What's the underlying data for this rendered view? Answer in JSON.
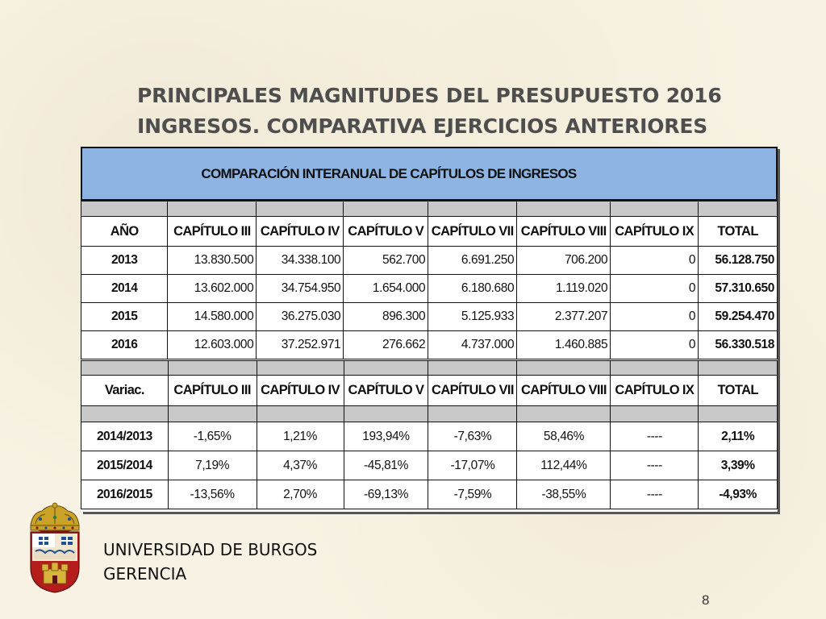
{
  "title": {
    "line1": "PRINCIPALES MAGNITUDES DEL PRESUPUESTO 2016",
    "line2": "INGRESOS. COMPARATIVA EJERCICIOS ANTERIORES"
  },
  "table": {
    "heading": "COMPARACIÓN INTERANUAL DE CAPÍTULOS DE INGRESOS",
    "amounts": {
      "columns": [
        "AÑO",
        "CAPÍTULO III",
        "CAPÍTULO IV",
        "CAPÍTULO V",
        "CAPÍTULO VII",
        "CAPÍTULO VIII",
        "CAPÍTULO IX",
        "TOTAL"
      ],
      "rows": [
        [
          "2013",
          "13.830.500",
          "34.338.100",
          "562.700",
          "6.691.250",
          "706.200",
          "0",
          "56.128.750"
        ],
        [
          "2014",
          "13.602.000",
          "34.754.950",
          "1.654.000",
          "6.180.680",
          "1.119.020",
          "0",
          "57.310.650"
        ],
        [
          "2015",
          "14.580.000",
          "36.275.030",
          "896.300",
          "5.125.933",
          "2.377.207",
          "0",
          "59.254.470"
        ],
        [
          "2016",
          "12.603.000",
          "37.252.971",
          "276.662",
          "4.737.000",
          "1.460.885",
          "0",
          "56.330.518"
        ]
      ]
    },
    "variations": {
      "columns": [
        "Variac.",
        "CAPÍTULO III",
        "CAPÍTULO IV",
        "CAPÍTULO V",
        "CAPÍTULO VII",
        "CAPÍTULO VIII",
        "CAPÍTULO IX",
        "TOTAL"
      ],
      "rows": [
        [
          "2014/2013",
          "-1,65%",
          "1,21%",
          "193,94%",
          "-7,63%",
          "58,46%",
          "----",
          "2,11%"
        ],
        [
          "2015/2014",
          "7,19%",
          "4,37%",
          "-45,81%",
          "-17,07%",
          "112,44%",
          "----",
          "3,39%"
        ],
        [
          "2016/2015",
          "-13,56%",
          "2,70%",
          "-69,13%",
          "-7,59%",
          "-38,55%",
          "----",
          "-4,93%"
        ]
      ]
    }
  },
  "footer": {
    "line1": "UNIVERSIDAD DE BURGOS",
    "line2": "GERENCIA"
  },
  "page_number": "8",
  "icons": {
    "crest": "university-crest-icon"
  },
  "colors": {
    "header_blue": "#8db4e2",
    "separator_grey": "#c8c8c8",
    "title_grey": "#4e4e4e"
  }
}
